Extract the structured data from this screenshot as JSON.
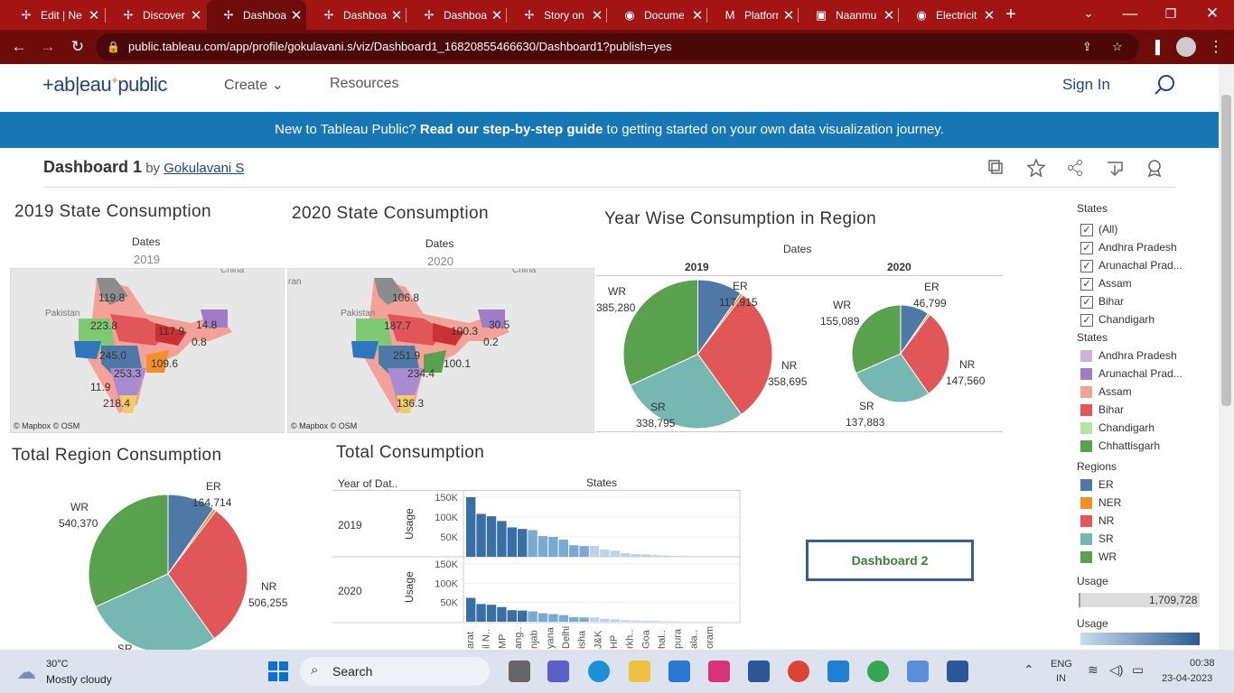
{
  "browser": {
    "tabs": [
      {
        "title": "Edit | Ne",
        "icon": "tableau-icon"
      },
      {
        "title": "Discover",
        "icon": "tableau-icon"
      },
      {
        "title": "Dashboa",
        "icon": "tableau-icon",
        "active": true
      },
      {
        "title": "Dashboa",
        "icon": "tableau-icon"
      },
      {
        "title": "Dashboa",
        "icon": "tableau-icon"
      },
      {
        "title": "Story on",
        "icon": "tableau-icon"
      },
      {
        "title": "Docume",
        "icon": "globe-icon"
      },
      {
        "title": "Platform",
        "icon": "gmail-icon"
      },
      {
        "title": "Naanmu",
        "icon": "app-icon"
      },
      {
        "title": "Electricit",
        "icon": "globe-icon"
      }
    ],
    "url": "public.tableau.com/app/profile/gokulavani.s/viz/Dashboard1_16820855466630/Dashboard1?publish=yes"
  },
  "nav": {
    "logo": "+ab|eau",
    "logo_plus": "+",
    "logo_word": "public",
    "create": "Create",
    "resources": "Resources",
    "signin": "Sign In"
  },
  "banner": {
    "pre": "New to Tableau Public? ",
    "bold": "Read our step-by-step guide",
    "post": " to getting started on your own data visualization journey."
  },
  "viz": {
    "title": "Dashboard 1",
    "by": " by ",
    "author": "Gokulavani S"
  },
  "maps": {
    "m2019": {
      "title": "2019 State Consumption",
      "dates": "Dates",
      "year": "2019",
      "labels": [
        "119.8",
        "223.8",
        "117.9",
        "14.8",
        "0.8",
        "245.0",
        "109.6",
        "253.3",
        "11.9",
        "218.4"
      ],
      "credit": "© Mapbox  © OSM",
      "place_labels": [
        "Pakistan",
        "China"
      ]
    },
    "m2020": {
      "title": "2020 State Consumption",
      "dates": "Dates",
      "year": "2020",
      "labels": [
        "106.8",
        "187.7",
        "100.3",
        "30.5",
        "0.2",
        "251.9",
        "100.1",
        "234.4",
        "136.3"
      ],
      "credit": "© Mapbox  © OSM",
      "place_labels": [
        "Pakistan",
        "China",
        "ran"
      ]
    }
  },
  "chart_data": [
    {
      "type": "pie",
      "title": "Year Wise Consumption in Region",
      "facet": "2019",
      "header": "Dates",
      "slices": [
        {
          "label": "ER",
          "value": 117915,
          "display": "117,915"
        },
        {
          "label": "NER",
          "value": 7400,
          "display": ""
        },
        {
          "label": "NR",
          "value": 358695,
          "display": "358,695"
        },
        {
          "label": "SR",
          "value": 338795,
          "display": "338,795"
        },
        {
          "label": "WR",
          "value": 385280,
          "display": "385,280"
        }
      ]
    },
    {
      "type": "pie",
      "title": "Year Wise Consumption in Region",
      "facet": "2020",
      "header": "Dates",
      "slices": [
        {
          "label": "ER",
          "value": 46799,
          "display": "46,799"
        },
        {
          "label": "NER",
          "value": 3400,
          "display": ""
        },
        {
          "label": "NR",
          "value": 147560,
          "display": "147,560"
        },
        {
          "label": "SR",
          "value": 137883,
          "display": "137,883"
        },
        {
          "label": "WR",
          "value": 155089,
          "display": "155,089"
        }
      ]
    },
    {
      "type": "pie",
      "title": "Total Region Consumption",
      "slices": [
        {
          "label": "ER",
          "value": 164714,
          "display": "164,714"
        },
        {
          "label": "NER",
          "value": 10800,
          "display": ""
        },
        {
          "label": "NR",
          "value": 506255,
          "display": "506,255"
        },
        {
          "label": "SR",
          "value": 476678,
          "display": ""
        },
        {
          "label": "WR",
          "value": 540370,
          "display": "540,370"
        }
      ]
    },
    {
      "type": "bar",
      "title": "Total Consumption",
      "row_header": "Year of Dat..",
      "col_header": "States",
      "ylabel": "Usage",
      "ylim": [
        0,
        150000
      ],
      "yticks": [
        "150K",
        "100K",
        "50K"
      ],
      "x_tick_labels": [
        "arat",
        "il N..",
        "MP",
        "ang..",
        "njab",
        "yana",
        "Delhi",
        "isha",
        "J&K",
        "HP",
        "rkh..",
        "Goa",
        "hal..",
        "pura",
        "ala..",
        "oram"
      ],
      "series": [
        {
          "name": "2019",
          "values": [
            150000,
            108000,
            102000,
            90000,
            74000,
            70000,
            67000,
            52000,
            50000,
            43000,
            29000,
            27000,
            27000,
            18000,
            15000,
            9000,
            7000,
            6000,
            4000,
            3000,
            2200,
            1500,
            1000,
            700,
            400
          ]
        },
        {
          "name": "2020",
          "values": [
            62000,
            46000,
            44000,
            38000,
            30000,
            29000,
            27000,
            22000,
            20000,
            17000,
            12000,
            11000,
            11000,
            7500,
            6000,
            3800,
            3000,
            2500,
            1800,
            1300,
            900,
            600,
            400,
            300,
            200
          ]
        }
      ]
    }
  ],
  "dashboard2": "Dashboard 2",
  "legend": {
    "states_filter_title": "States",
    "states_filter": [
      "(All)",
      "Andhra Pradesh",
      "Arunachal Prad...",
      "Assam",
      "Bihar",
      "Chandigarh"
    ],
    "states_color_title": "States",
    "states_colors": [
      {
        "label": "Andhra Pradesh",
        "color": "#c9b3d9"
      },
      {
        "label": "Arunachal Prad...",
        "color": "#9f7cc4"
      },
      {
        "label": "Assam",
        "color": "#f4a19a"
      },
      {
        "label": "Bihar",
        "color": "#e15759"
      },
      {
        "label": "Chandigarh",
        "color": "#b6e3a8"
      },
      {
        "label": "Chhattisgarh",
        "color": "#59a14f"
      }
    ],
    "regions_title": "Regions",
    "regions": [
      {
        "label": "ER",
        "color": "#4e79a7"
      },
      {
        "label": "NER",
        "color": "#f28e2b"
      },
      {
        "label": "NR",
        "color": "#e15759"
      },
      {
        "label": "SR",
        "color": "#76b7b2"
      },
      {
        "label": "WR",
        "color": "#59a14f"
      }
    ],
    "usage_title": "Usage",
    "usage_value": "1,709,728",
    "usage2_title": "Usage"
  },
  "taskbar": {
    "temp": "30°C",
    "weather": "Mostly cloudy",
    "search": "Search",
    "lang1": "ENG",
    "lang2": "IN",
    "time": "00:38",
    "date": "23-04-2023"
  }
}
